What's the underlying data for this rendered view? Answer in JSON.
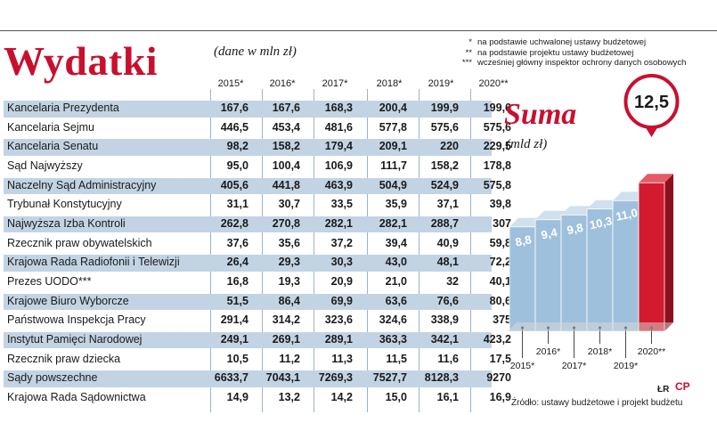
{
  "title": "Wydatki",
  "unit_note": "(dane w mln zł)",
  "footnotes": [
    {
      "mark": "*",
      "text": "na podstawie uchwalonej ustawy budżetowej"
    },
    {
      "mark": "**",
      "text": "na podstawie projektu ustawy budżetowej"
    },
    {
      "mark": "***",
      "text": "wcześniej główny inspektor ochrony danych osobowych"
    }
  ],
  "years": [
    "2015*",
    "2016*",
    "2017*",
    "2018*",
    "2019*",
    "2020**"
  ],
  "rows": [
    {
      "name": "Kancelaria Prezydenta",
      "values": [
        "167,6",
        "167,6",
        "168,3",
        "200,4",
        "199,9",
        "199,6"
      ]
    },
    {
      "name": "Kancelaria Sejmu",
      "values": [
        "446,5",
        "453,4",
        "481,6",
        "577,8",
        "575,6",
        "575,6"
      ]
    },
    {
      "name": "Kancelaria Senatu",
      "values": [
        "98,2",
        "158,2",
        "179,4",
        "209,1",
        "220",
        "229,5"
      ]
    },
    {
      "name": "Sąd Najwyższy",
      "values": [
        "95,0",
        "100,4",
        "106,9",
        "111,7",
        "158,2",
        "178,8"
      ]
    },
    {
      "name": "Naczelny Sąd Administracyjny",
      "values": [
        "405,6",
        "441,8",
        "463,9",
        "504,9",
        "524,9",
        "575,8"
      ]
    },
    {
      "name": "Trybunał Konstytucyjny",
      "values": [
        "31,1",
        "30,7",
        "33,5",
        "35,9",
        "37,1",
        "39,8"
      ]
    },
    {
      "name": "Najwyższa Izba Kontroli",
      "values": [
        "262,8",
        "270,8",
        "282,1",
        "282,1",
        "288,7",
        "307"
      ]
    },
    {
      "name": "Rzecznik praw obywatelskich",
      "values": [
        "37,6",
        "35,6",
        "37,2",
        "39,4",
        "40,9",
        "59,8"
      ]
    },
    {
      "name": "Krajowa Rada Radiofonii i Telewizji",
      "values": [
        "26,4",
        "29,3",
        "30,3",
        "43,0",
        "48,1",
        "72,2"
      ]
    },
    {
      "name": "Prezes UODO***",
      "values": [
        "16,8",
        "19,3",
        "20,9",
        "21,0",
        "32",
        "40,1"
      ]
    },
    {
      "name": "Krajowe Biuro Wyborcze",
      "values": [
        "51,5",
        "86,4",
        "69,9",
        "63,6",
        "76,6",
        "80,6"
      ]
    },
    {
      "name": "Państwowa Inspekcja Pracy",
      "values": [
        "291,4",
        "314,2",
        "323,6",
        "324,6",
        "338,9",
        "375"
      ]
    },
    {
      "name": "Instytut Pamięci Narodowej",
      "values": [
        "249,1",
        "269,1",
        "289,1",
        "363,3",
        "342,1",
        "423,2"
      ]
    },
    {
      "name": "Rzecznik praw dziecka",
      "values": [
        "10,5",
        "11,2",
        "11,3",
        "11,5",
        "11,6",
        "17,5"
      ]
    },
    {
      "name": "Sądy powszechne",
      "values": [
        "6633,7",
        "7043,1",
        "7269,3",
        "7527,7",
        "8128,3",
        "9270"
      ]
    },
    {
      "name": "Krajowa Rada Sądownictwa",
      "values": [
        "14,9",
        "13,2",
        "14,2",
        "15,0",
        "16,1",
        "16,9"
      ]
    }
  ],
  "chart_data": {
    "type": "bar",
    "title": "Suma",
    "ylabel": "(mld zł)",
    "categories": [
      "2015*",
      "2016*",
      "2017*",
      "2018*",
      "2019*",
      "2020**"
    ],
    "values": [
      8.8,
      9.4,
      9.8,
      10.3,
      11.0,
      12.5
    ],
    "labels": [
      "8,8",
      "9,4",
      "9,8",
      "10,3",
      "11,0",
      "12,5"
    ],
    "ylim": [
      0,
      13
    ]
  },
  "colors": {
    "accent": "#c8102e",
    "bar": "#9fc0dc",
    "row_stripe": "#c2d4e4"
  },
  "credit": "ŁR",
  "logo_text": "CP",
  "source": "Źródło: ustawy budżetowe i projekt budżetu"
}
